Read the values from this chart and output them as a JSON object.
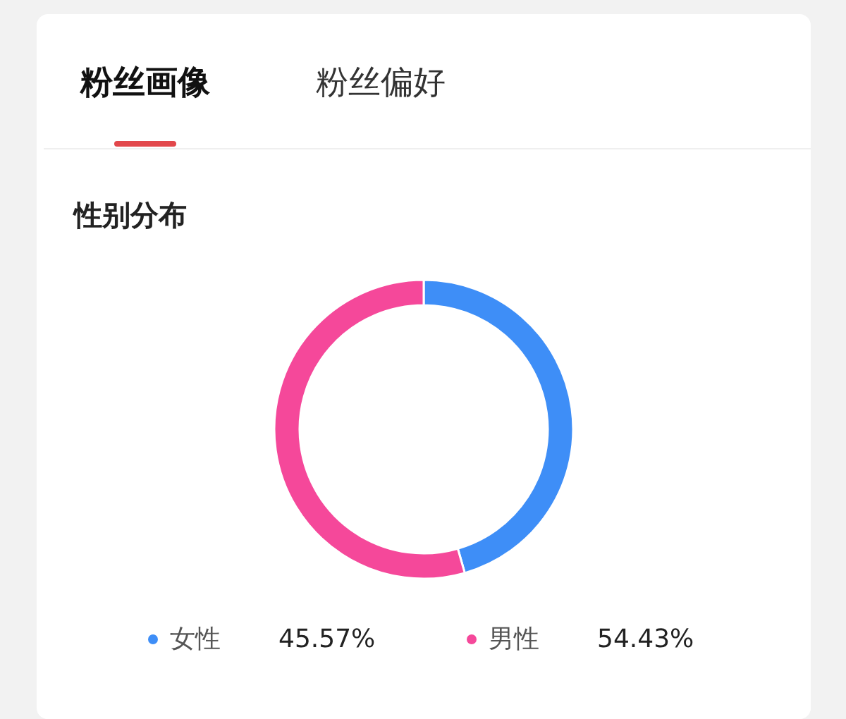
{
  "chart_data": {
    "type": "donut",
    "title": "性别分布",
    "annotations": [
      "粉丝画像",
      "粉丝偏好"
    ],
    "categories": [
      "女性",
      "男性"
    ],
    "values": [
      45.57,
      54.43
    ],
    "colors": [
      "#3e8ef7",
      "#f5489a"
    ],
    "value_labels": [
      "45.57%",
      "54.43%"
    ],
    "legend": "bottom"
  }
}
